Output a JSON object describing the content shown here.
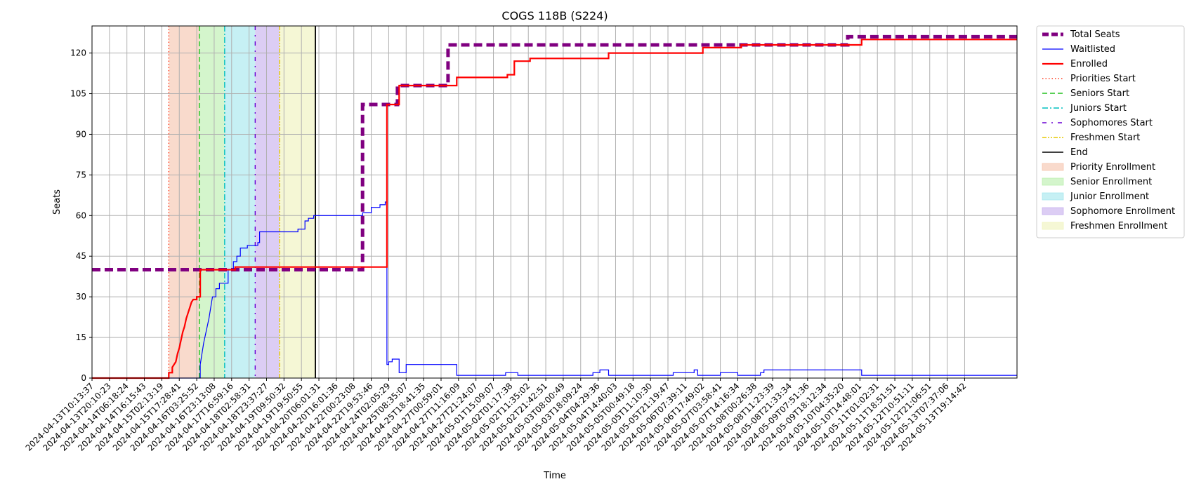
{
  "chart_data": {
    "type": "line",
    "title": "COGS 118B (S224)",
    "xlabel": "Time",
    "ylabel": "Seats",
    "xlim": [
      0,
      53
    ],
    "ylim": [
      0,
      130
    ],
    "grid": true,
    "legend_position": "outside-top-right",
    "x_tick_labels": [
      "2024-04-13T10:13:37",
      "2024-04-13T20:10:23",
      "2024-04-14T06:18:24",
      "2024-04-14T16:15:43",
      "2024-04-15T02:13:19",
      "2024-04-15T17:28:41",
      "2024-04-16T03:25:52",
      "2024-04-16T23:13:08",
      "2024-04-17T16:59:16",
      "2024-04-18T02:58:31",
      "2024-04-18T23:37:27",
      "2024-04-19T09:50:32",
      "2024-04-19T19:50:55",
      "2024-04-20T06:01:31",
      "2024-04-20T16:01:36",
      "2024-04-22T00:23:08",
      "2024-04-22T19:53:46",
      "2024-04-24T02:05:29",
      "2024-04-25T08:35:07",
      "2024-04-25T18:41:35",
      "2024-04-27T00:59:01",
      "2024-04-27T11:16:09",
      "2024-04-27T21:24:07",
      "2024-05-01T15:09:07",
      "2024-05-02T01:17:38",
      "2024-05-02T11:35:02",
      "2024-05-02T21:42:51",
      "2024-05-03T08:00:49",
      "2024-05-03T18:09:24",
      "2024-05-04T04:29:36",
      "2024-05-04T14:40:03",
      "2024-05-05T00:49:18",
      "2024-05-05T11:10:30",
      "2024-05-05T21:19:47",
      "2024-05-06T07:39:11",
      "2024-05-06T17:49:02",
      "2024-05-07T03:58:41",
      "2024-05-07T14:16:34",
      "2024-05-08T00:26:38",
      "2024-05-08T11:23:39",
      "2024-05-08T21:33:34",
      "2024-05-09T07:51:36",
      "2024-05-09T18:12:34",
      "2024-05-10T04:35:20",
      "2024-05-10T14:48:01",
      "2024-05-11T01:02:31",
      "2024-05-11T18:51:51",
      "2024-05-12T10:51:11",
      "2024-05-12T21:06:51",
      "2024-05-13T07:37:06",
      "2024-05-13T19:14:42"
    ],
    "y_tick_labels": [
      "0",
      "15",
      "30",
      "45",
      "60",
      "75",
      "90",
      "105",
      "120"
    ],
    "y_ticks": [
      0,
      15,
      30,
      45,
      60,
      75,
      90,
      105,
      120
    ],
    "series": [
      {
        "name": "Total Seats",
        "color": "#800080",
        "style": "dashed",
        "width": "thick",
        "points": [
          [
            0,
            40
          ],
          [
            15.5,
            40
          ],
          [
            15.5,
            101
          ],
          [
            17.5,
            101
          ],
          [
            17.5,
            108
          ],
          [
            20.4,
            108
          ],
          [
            20.4,
            123
          ],
          [
            43.3,
            123
          ],
          [
            43.3,
            126
          ],
          [
            53,
            126
          ]
        ]
      },
      {
        "name": "Waitlisted",
        "color": "#0000ff",
        "style": "solid",
        "width": "thin",
        "points": [
          [
            0,
            0
          ],
          [
            6.2,
            0
          ],
          [
            6.2,
            5
          ],
          [
            6.4,
            13
          ],
          [
            6.7,
            22
          ],
          [
            6.9,
            30
          ],
          [
            7.1,
            30
          ],
          [
            7.1,
            33
          ],
          [
            7.3,
            33
          ],
          [
            7.3,
            35
          ],
          [
            7.8,
            35
          ],
          [
            7.8,
            40
          ],
          [
            8.1,
            40
          ],
          [
            8.1,
            43
          ],
          [
            8.3,
            43
          ],
          [
            8.3,
            45
          ],
          [
            8.5,
            45
          ],
          [
            8.5,
            48
          ],
          [
            8.9,
            48
          ],
          [
            8.9,
            49
          ],
          [
            9.5,
            49
          ],
          [
            9.5,
            50
          ],
          [
            9.6,
            50
          ],
          [
            9.6,
            54
          ],
          [
            11.8,
            54
          ],
          [
            11.8,
            55
          ],
          [
            12.2,
            55
          ],
          [
            12.2,
            58
          ],
          [
            12.4,
            58
          ],
          [
            12.4,
            59
          ],
          [
            12.7,
            59
          ],
          [
            12.7,
            60
          ],
          [
            15.5,
            60
          ],
          [
            15.5,
            61
          ],
          [
            16,
            61
          ],
          [
            16,
            63
          ],
          [
            16.5,
            63
          ],
          [
            16.5,
            64
          ],
          [
            16.8,
            64
          ],
          [
            16.8,
            65
          ],
          [
            16.9,
            65
          ],
          [
            16.9,
            5
          ],
          [
            17,
            5
          ],
          [
            17,
            6
          ],
          [
            17.2,
            6
          ],
          [
            17.2,
            7
          ],
          [
            17.6,
            7
          ],
          [
            17.6,
            2
          ],
          [
            18,
            2
          ],
          [
            18,
            5
          ],
          [
            20.9,
            5
          ],
          [
            20.9,
            1
          ],
          [
            23.7,
            1
          ],
          [
            23.7,
            2
          ],
          [
            24.4,
            2
          ],
          [
            24.4,
            1
          ],
          [
            28.7,
            1
          ],
          [
            28.7,
            2
          ],
          [
            29.1,
            2
          ],
          [
            29.1,
            3
          ],
          [
            29.6,
            3
          ],
          [
            29.6,
            1
          ],
          [
            33.3,
            1
          ],
          [
            33.3,
            2
          ],
          [
            34.5,
            2
          ],
          [
            34.5,
            3
          ],
          [
            34.7,
            3
          ],
          [
            34.7,
            1
          ],
          [
            36,
            1
          ],
          [
            36,
            2
          ],
          [
            37,
            2
          ],
          [
            37,
            1
          ],
          [
            38.3,
            1
          ],
          [
            38.3,
            2
          ],
          [
            38.5,
            2
          ],
          [
            38.5,
            3
          ],
          [
            44.1,
            3
          ],
          [
            44.1,
            1
          ],
          [
            53,
            1
          ]
        ]
      },
      {
        "name": "Enrolled",
        "color": "#ff0000",
        "style": "solid",
        "width": "medium",
        "points": [
          [
            0,
            0
          ],
          [
            4.4,
            0
          ],
          [
            4.4,
            2
          ],
          [
            4.6,
            2
          ],
          [
            4.6,
            4
          ],
          [
            4.8,
            6
          ],
          [
            4.9,
            9
          ],
          [
            5,
            11
          ],
          [
            5.1,
            14
          ],
          [
            5.2,
            17
          ],
          [
            5.3,
            19
          ],
          [
            5.4,
            22
          ],
          [
            5.5,
            24
          ],
          [
            5.6,
            26
          ],
          [
            5.7,
            28
          ],
          [
            5.8,
            29
          ],
          [
            6,
            29
          ],
          [
            6,
            30
          ],
          [
            6.2,
            30
          ],
          [
            6.2,
            40
          ],
          [
            8.2,
            40
          ],
          [
            8.2,
            41
          ],
          [
            16.9,
            41
          ],
          [
            16.9,
            101
          ],
          [
            17.6,
            101
          ],
          [
            17.6,
            108
          ],
          [
            20.9,
            108
          ],
          [
            20.9,
            111
          ],
          [
            23.8,
            111
          ],
          [
            23.8,
            112
          ],
          [
            24.2,
            112
          ],
          [
            24.2,
            117
          ],
          [
            25.1,
            117
          ],
          [
            25.1,
            118
          ],
          [
            29.6,
            118
          ],
          [
            29.6,
            120
          ],
          [
            35,
            120
          ],
          [
            35,
            122
          ],
          [
            37.2,
            122
          ],
          [
            37.2,
            123
          ],
          [
            44.1,
            123
          ],
          [
            44.1,
            125
          ],
          [
            53,
            125
          ]
        ]
      }
    ],
    "vertical_lines": [
      {
        "name": "Priorities Start",
        "x": 4.4,
        "color": "#ff3b1f",
        "style": "dotted"
      },
      {
        "name": "Seniors Start",
        "x": 6.15,
        "color": "#22c01e",
        "style": "dashed"
      },
      {
        "name": "Juniors Start",
        "x": 7.6,
        "color": "#00bfbf",
        "style": "dashdot"
      },
      {
        "name": "Sophomores Start",
        "x": 9.35,
        "color": "#6a00d4",
        "style": "loose-dashdot"
      },
      {
        "name": "Freshmen Start",
        "x": 10.75,
        "color": "#e6c800",
        "style": "dashdotdot"
      },
      {
        "name": "End",
        "x": 12.8,
        "color": "#000000",
        "style": "solid"
      }
    ],
    "shaded_regions": [
      {
        "name": "Priority Enrollment",
        "x0": 4.4,
        "x1": 6.15,
        "color": "#f6c6b0"
      },
      {
        "name": "Senior Enrollment",
        "x0": 6.15,
        "x1": 7.6,
        "color": "#bdf0b0"
      },
      {
        "name": "Junior Enrollment",
        "x0": 7.6,
        "x1": 9.35,
        "color": "#a8e8ee"
      },
      {
        "name": "Sophomore Enrollment",
        "x0": 9.35,
        "x1": 10.75,
        "color": "#c9b2ee"
      },
      {
        "name": "Freshmen Enrollment",
        "x0": 10.75,
        "x1": 12.8,
        "color": "#f0f3be"
      }
    ],
    "legend": [
      {
        "label": "Total Seats",
        "kind": "line",
        "color": "#800080",
        "style": "dashed",
        "width": 5
      },
      {
        "label": "Waitlisted",
        "kind": "line",
        "color": "#0000ff",
        "style": "solid",
        "width": 1.2
      },
      {
        "label": "Enrolled",
        "kind": "line",
        "color": "#ff0000",
        "style": "solid",
        "width": 2.2
      },
      {
        "label": "Priorities Start",
        "kind": "line",
        "color": "#ff3b1f",
        "style": "dotted",
        "width": 1.4
      },
      {
        "label": "Seniors Start",
        "kind": "line",
        "color": "#22c01e",
        "style": "dashed",
        "width": 1.4
      },
      {
        "label": "Juniors Start",
        "kind": "line",
        "color": "#00bfbf",
        "style": "dashdot",
        "width": 1.4
      },
      {
        "label": "Sophomores Start",
        "kind": "line",
        "color": "#6a00d4",
        "style": "loose-dashdot",
        "width": 1.4
      },
      {
        "label": "Freshmen Start",
        "kind": "line",
        "color": "#e6c800",
        "style": "dashdotdot",
        "width": 1.4
      },
      {
        "label": "End",
        "kind": "line",
        "color": "#000000",
        "style": "solid",
        "width": 1.6
      },
      {
        "label": "Priority Enrollment",
        "kind": "patch",
        "color": "#f6c6b0"
      },
      {
        "label": "Senior Enrollment",
        "kind": "patch",
        "color": "#bdf0b0"
      },
      {
        "label": "Junior Enrollment",
        "kind": "patch",
        "color": "#a8e8ee"
      },
      {
        "label": "Sophomore Enrollment",
        "kind": "patch",
        "color": "#c9b2ee"
      },
      {
        "label": "Freshmen Enrollment",
        "kind": "patch",
        "color": "#f0f3be"
      }
    ]
  }
}
